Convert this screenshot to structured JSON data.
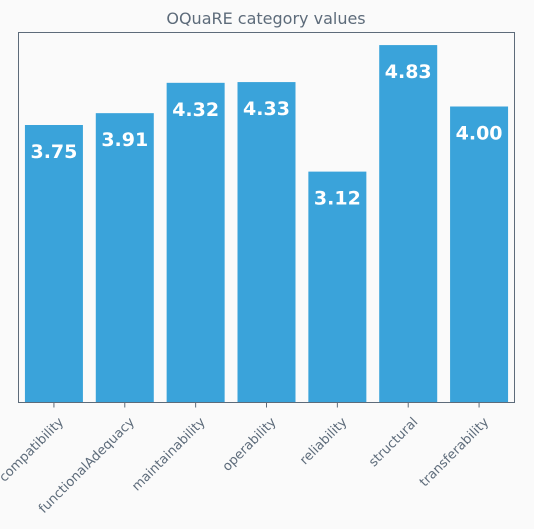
{
  "chart_data": {
    "type": "bar",
    "title": "OQuaRE category values",
    "xlabel": "",
    "ylabel": "",
    "categories": [
      "compatibility",
      "functionalAdequacy",
      "maintainability",
      "operability",
      "reliability",
      "structural",
      "transferability"
    ],
    "values": [
      3.75,
      3.91,
      4.32,
      4.33,
      3.12,
      4.83,
      4.0
    ],
    "value_labels": [
      "3.75",
      "3.91",
      "4.32",
      "4.33",
      "3.12",
      "4.83",
      "4.00"
    ],
    "ylim": [
      0,
      5
    ],
    "grid": false,
    "y_ticks_visible": false,
    "bar_color": "#3aa3da",
    "value_label_color": "#ffffff",
    "axis_color": "#5d6b7a"
  }
}
